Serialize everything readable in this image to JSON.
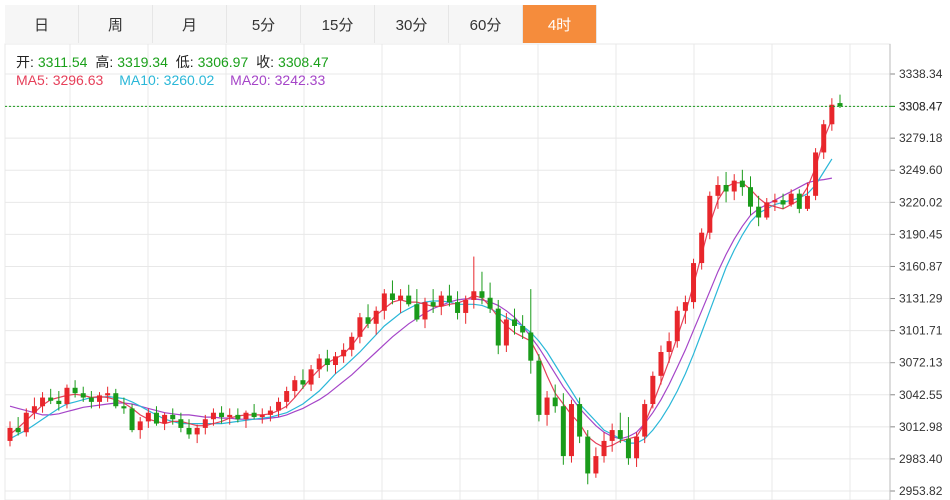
{
  "tabs": [
    "日",
    "周",
    "月",
    "5分",
    "15分",
    "30分",
    "60分",
    "4时"
  ],
  "active_tab": 7,
  "info": {
    "open_label": "开:",
    "open": "3311.54",
    "high_label": "高:",
    "high": "3319.34",
    "low_label": "低:",
    "low": "3306.97",
    "close_label": "收:",
    "close": "3308.47",
    "ma5_label": "MA5:",
    "ma5": "3296.63",
    "ma10_label": "MA10:",
    "ma10": "3260.02",
    "ma20_label": "MA20:",
    "ma20": "3242.33"
  },
  "colors": {
    "up": "#e8262b",
    "down": "#1a9b1a",
    "ma5": "#e6405a",
    "ma10": "#2ab7d8",
    "ma20": "#a545c8",
    "price_line": "#1a9b1a",
    "grid": "#e8e8e8",
    "tab_active": "#f58c3c"
  },
  "chart_data": {
    "type": "candlestick",
    "y_ticks": [
      "3338.34",
      "3308.47",
      "3279.18",
      "3249.60",
      "3220.02",
      "3190.45",
      "3160.87",
      "3131.29",
      "3101.71",
      "3072.13",
      "3042.55",
      "3012.98",
      "2983.40",
      "2953.82"
    ],
    "ylim": [
      2953.82,
      3338.34
    ],
    "last_price": 3308.47,
    "candles": [
      [
        3000,
        3018,
        2995,
        3012
      ],
      [
        3012,
        3022,
        3005,
        3008
      ],
      [
        3008,
        3030,
        3004,
        3026
      ],
      [
        3026,
        3040,
        3020,
        3032
      ],
      [
        3032,
        3045,
        3026,
        3040
      ],
      [
        3040,
        3048,
        3034,
        3037
      ],
      [
        3037,
        3046,
        3028,
        3034
      ],
      [
        3034,
        3052,
        3030,
        3049
      ],
      [
        3049,
        3056,
        3040,
        3044
      ],
      [
        3044,
        3050,
        3036,
        3040
      ],
      [
        3040,
        3046,
        3030,
        3036
      ],
      [
        3036,
        3045,
        3030,
        3042
      ],
      [
        3042,
        3050,
        3036,
        3044
      ],
      [
        3044,
        3048,
        3030,
        3032
      ],
      [
        3032,
        3040,
        3025,
        3030
      ],
      [
        3030,
        3034,
        3008,
        3010
      ],
      [
        3010,
        3022,
        3002,
        3018
      ],
      [
        3018,
        3030,
        3012,
        3026
      ],
      [
        3026,
        3032,
        3014,
        3016
      ],
      [
        3016,
        3026,
        3010,
        3024
      ],
      [
        3024,
        3030,
        3015,
        3020
      ],
      [
        3020,
        3026,
        3008,
        3012
      ],
      [
        3012,
        3020,
        3002,
        3006
      ],
      [
        3006,
        3015,
        2998,
        3012
      ],
      [
        3012,
        3024,
        3006,
        3020
      ],
      [
        3020,
        3030,
        3014,
        3026
      ],
      [
        3026,
        3032,
        3016,
        3022
      ],
      [
        3022,
        3030,
        3015,
        3024
      ],
      [
        3024,
        3030,
        3017,
        3020
      ],
      [
        3020,
        3028,
        3012,
        3026
      ],
      [
        3026,
        3034,
        3020,
        3022
      ],
      [
        3022,
        3030,
        3016,
        3024
      ],
      [
        3024,
        3032,
        3018,
        3028
      ],
      [
        3028,
        3040,
        3022,
        3036
      ],
      [
        3036,
        3050,
        3030,
        3046
      ],
      [
        3046,
        3060,
        3040,
        3056
      ],
      [
        3056,
        3066,
        3048,
        3052
      ],
      [
        3052,
        3070,
        3046,
        3066
      ],
      [
        3066,
        3080,
        3058,
        3076
      ],
      [
        3076,
        3084,
        3064,
        3070
      ],
      [
        3070,
        3082,
        3062,
        3078
      ],
      [
        3078,
        3090,
        3072,
        3084
      ],
      [
        3084,
        3100,
        3078,
        3096
      ],
      [
        3096,
        3118,
        3090,
        3114
      ],
      [
        3114,
        3126,
        3104,
        3108
      ],
      [
        3108,
        3124,
        3098,
        3120
      ],
      [
        3120,
        3140,
        3112,
        3136
      ],
      [
        3136,
        3148,
        3126,
        3130
      ],
      [
        3130,
        3140,
        3118,
        3134
      ],
      [
        3134,
        3144,
        3124,
        3126
      ],
      [
        3126,
        3140,
        3110,
        3112
      ],
      [
        3112,
        3132,
        3104,
        3128
      ],
      [
        3128,
        3140,
        3118,
        3124
      ],
      [
        3124,
        3138,
        3116,
        3134
      ],
      [
        3134,
        3144,
        3124,
        3128
      ],
      [
        3128,
        3138,
        3112,
        3118
      ],
      [
        3118,
        3134,
        3108,
        3130
      ],
      [
        3130,
        3170,
        3122,
        3138
      ],
      [
        3138,
        3156,
        3126,
        3132
      ],
      [
        3132,
        3146,
        3118,
        3122
      ],
      [
        3122,
        3130,
        3080,
        3088
      ],
      [
        3088,
        3118,
        3082,
        3112
      ],
      [
        3112,
        3122,
        3098,
        3106
      ],
      [
        3106,
        3116,
        3094,
        3100
      ],
      [
        3100,
        3140,
        3062,
        3074
      ],
      [
        3074,
        3080,
        3018,
        3024
      ],
      [
        3024,
        3046,
        3014,
        3040
      ],
      [
        3040,
        3052,
        3026,
        3032
      ],
      [
        3032,
        3044,
        2978,
        2986
      ],
      [
        2986,
        3038,
        2980,
        3034
      ],
      [
        3034,
        3040,
        2998,
        3004
      ],
      [
        3004,
        3010,
        2960,
        2970
      ],
      [
        2970,
        2994,
        2966,
        2986
      ],
      [
        2986,
        3008,
        2980,
        3000
      ],
      [
        3000,
        3016,
        2990,
        3010
      ],
      [
        3010,
        3026,
        2998,
        3002
      ],
      [
        3002,
        3022,
        2978,
        2984
      ],
      [
        2984,
        3008,
        2976,
        3004
      ],
      [
        3004,
        3038,
        2998,
        3034
      ],
      [
        3034,
        3064,
        3030,
        3060
      ],
      [
        3060,
        3088,
        3052,
        3082
      ],
      [
        3082,
        3100,
        3072,
        3092
      ],
      [
        3092,
        3124,
        3086,
        3120
      ],
      [
        3120,
        3134,
        3108,
        3128
      ],
      [
        3128,
        3168,
        3122,
        3164
      ],
      [
        3164,
        3196,
        3158,
        3192
      ],
      [
        3192,
        3230,
        3186,
        3226
      ],
      [
        3226,
        3244,
        3214,
        3236
      ],
      [
        3236,
        3248,
        3220,
        3230
      ],
      [
        3230,
        3246,
        3222,
        3240
      ],
      [
        3240,
        3250,
        3226,
        3234
      ],
      [
        3234,
        3244,
        3208,
        3216
      ],
      [
        3216,
        3226,
        3198,
        3206
      ],
      [
        3206,
        3224,
        3204,
        3220
      ],
      [
        3220,
        3228,
        3212,
        3222
      ],
      [
        3222,
        3228,
        3214,
        3218
      ],
      [
        3218,
        3232,
        3216,
        3228
      ],
      [
        3228,
        3232,
        3210,
        3214
      ],
      [
        3214,
        3238,
        3212,
        3226
      ],
      [
        3226,
        3270,
        3222,
        3266
      ],
      [
        3266,
        3296,
        3260,
        3292
      ],
      [
        3292,
        3316,
        3286,
        3310
      ],
      [
        3311.54,
        3319.34,
        3306.97,
        3308.47
      ]
    ],
    "ma5": [
      3006,
      3012,
      3019,
      3026,
      3033,
      3038,
      3040,
      3042,
      3043,
      3042,
      3040,
      3041,
      3040,
      3038,
      3035,
      3030,
      3024,
      3020,
      3018,
      3016,
      3018,
      3018,
      3016,
      3014,
      3014,
      3016,
      3018,
      3021,
      3023,
      3024,
      3024,
      3024,
      3025,
      3028,
      3032,
      3040,
      3049,
      3058,
      3066,
      3072,
      3076,
      3080,
      3088,
      3098,
      3108,
      3116,
      3122,
      3128,
      3130,
      3128,
      3128,
      3126,
      3124,
      3124,
      3126,
      3127,
      3130,
      3134,
      3132,
      3124,
      3114,
      3106,
      3100,
      3096,
      3092,
      3078,
      3060,
      3044,
      3034,
      3024,
      3016,
      3004,
      2998,
      2994,
      2996,
      3000,
      3002,
      3004,
      3016,
      3034,
      3054,
      3074,
      3096,
      3118,
      3144,
      3172,
      3200,
      3222,
      3234,
      3238,
      3238,
      3232,
      3224,
      3218,
      3216,
      3214,
      3218,
      3222,
      3234,
      3252,
      3278,
      3296.63
    ],
    "ma10": [
      3002,
      3006,
      3010,
      3015,
      3020,
      3025,
      3030,
      3034,
      3036,
      3038,
      3040,
      3040,
      3041,
      3040,
      3039,
      3036,
      3032,
      3028,
      3024,
      3020,
      3018,
      3016,
      3016,
      3016,
      3016,
      3016,
      3016,
      3017,
      3018,
      3019,
      3020,
      3021,
      3022,
      3024,
      3026,
      3030,
      3034,
      3040,
      3046,
      3054,
      3062,
      3068,
      3075,
      3082,
      3090,
      3098,
      3106,
      3112,
      3118,
      3122,
      3126,
      3128,
      3129,
      3129,
      3128,
      3126,
      3126,
      3126,
      3125,
      3122,
      3118,
      3114,
      3110,
      3106,
      3100,
      3092,
      3082,
      3070,
      3058,
      3046,
      3034,
      3026,
      3018,
      3010,
      3006,
      3002,
      2998,
      2998,
      3002,
      3010,
      3020,
      3032,
      3046,
      3062,
      3080,
      3100,
      3120,
      3140,
      3160,
      3176,
      3190,
      3202,
      3210,
      3214,
      3218,
      3220,
      3222,
      3224,
      3228,
      3236,
      3248,
      3260.02
    ],
    "ma20": [
      3032,
      3030,
      3028,
      3026,
      3024,
      3024,
      3025,
      3027,
      3029,
      3031,
      3032,
      3033,
      3034,
      3035,
      3035,
      3034,
      3032,
      3030,
      3028,
      3026,
      3025,
      3024,
      3024,
      3023,
      3022,
      3022,
      3021,
      3021,
      3020,
      3020,
      3020,
      3020,
      3021,
      3022,
      3024,
      3027,
      3030,
      3034,
      3038,
      3043,
      3049,
      3055,
      3061,
      3068,
      3075,
      3082,
      3089,
      3096,
      3102,
      3108,
      3113,
      3118,
      3122,
      3125,
      3128,
      3130,
      3131,
      3131,
      3130,
      3128,
      3125,
      3120,
      3114,
      3106,
      3096,
      3086,
      3074,
      3062,
      3050,
      3040,
      3030,
      3022,
      3014,
      3008,
      3004,
      3002,
      3004,
      3008,
      3016,
      3026,
      3038,
      3052,
      3068,
      3084,
      3102,
      3120,
      3138,
      3156,
      3172,
      3186,
      3198,
      3208,
      3214,
      3218,
      3222,
      3226,
      3230,
      3234,
      3238,
      3240,
      3241,
      3242.33
    ]
  }
}
